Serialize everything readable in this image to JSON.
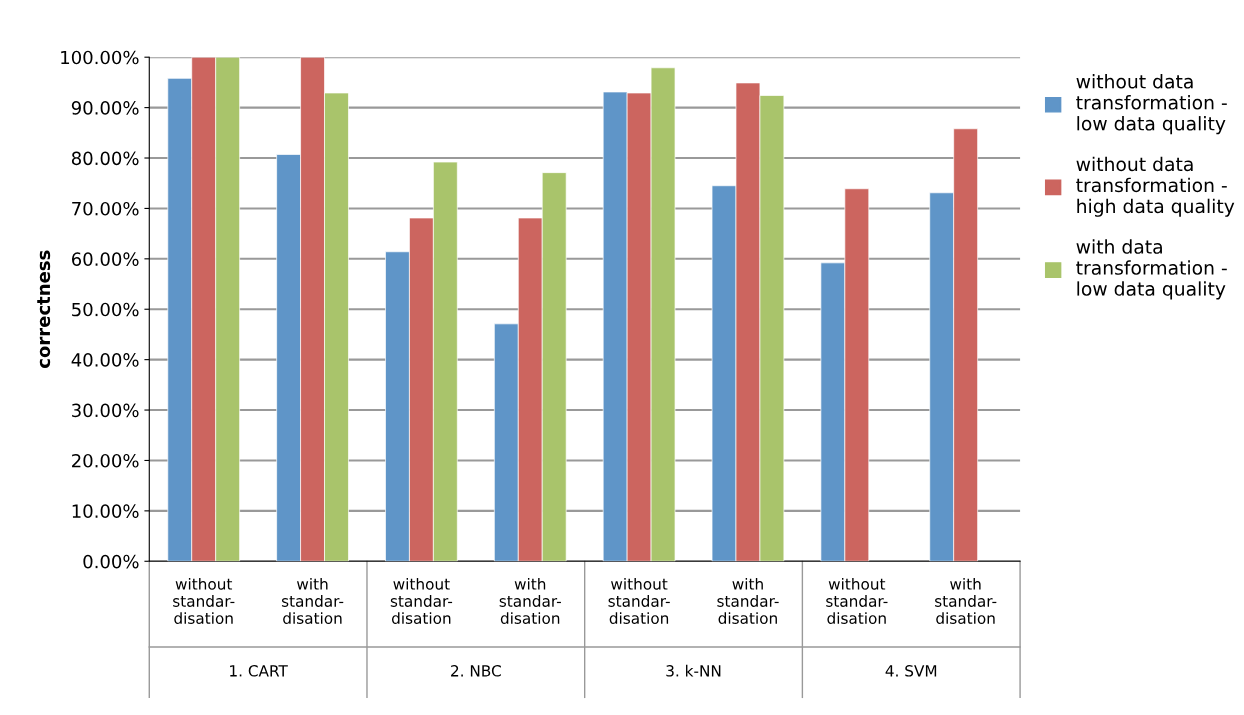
{
  "chart_data": {
    "type": "bar",
    "categories": [
      "without\nstandar-\ndisation",
      "with\nstandar-\ndisation",
      "without\nstandar-\ndisation",
      "with\nstandar-\ndisation",
      "without\nstandar-\ndisation",
      "with\nstandar-\ndisation",
      "without\nstandar-\ndisation",
      "with\nstandar-\ndisation"
    ],
    "annotations": [
      "1. CART",
      "2. NBC",
      "3. k-NN",
      "4. SVM"
    ],
    "ylabel": "correctness",
    "series": [
      {
        "name": "without data transformation - low data quality",
        "color": "#5f95c8",
        "values": [
          95.8,
          80.7,
          61.4,
          47.1,
          93.1,
          74.5,
          59.2,
          73.1
        ]
      },
      {
        "name": "without data transformation - high data quality",
        "color": "#cc655f",
        "values": [
          100,
          100,
          68.1,
          68.1,
          92.9,
          94.9,
          73.9,
          85.8
        ]
      },
      {
        "name": "with data transformation - low data quality",
        "color": "#a9c46b",
        "values": [
          100,
          92.9,
          79.2,
          77.1,
          97.9,
          92.4,
          null,
          null
        ]
      }
    ],
    "ylim": [
      0,
      100
    ],
    "yticks": [
      {
        "value": 0,
        "label": "0.00%"
      },
      {
        "value": 10,
        "label": "10.00%"
      },
      {
        "value": 20,
        "label": "20.00%"
      },
      {
        "value": 30,
        "label": "30.00%"
      },
      {
        "value": 40,
        "label": "40.00%"
      },
      {
        "value": 50,
        "label": "50.00%"
      },
      {
        "value": 60,
        "label": "60.00%"
      },
      {
        "value": 70,
        "label": "70.00%"
      },
      {
        "value": 80,
        "label": "80.00%"
      },
      {
        "value": 90,
        "label": "90.00%"
      },
      {
        "value": 100,
        "label": "100.00%"
      }
    ],
    "grid": "y",
    "legend": "right"
  }
}
